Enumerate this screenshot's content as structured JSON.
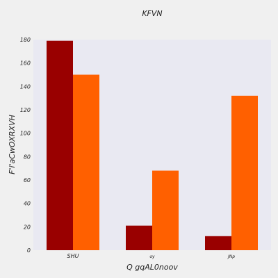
{
  "chart_data": {
    "type": "bar",
    "title": "KFVN",
    "xlabel": "Q  gqAL0noov",
    "ylabel": "F'i'aCwOXRXVH",
    "categories": [
      "SHU",
      "oy",
      "JNp"
    ],
    "series": [
      {
        "values": [
          179,
          21,
          12
        ],
        "color": "#990000"
      },
      {
        "values": [
          150,
          68,
          132
        ],
        "color": "#ff6000"
      }
    ],
    "ylim": [
      0,
      180
    ],
    "yticks": [
      0,
      20,
      40,
      60,
      80,
      100,
      120,
      140,
      160,
      180
    ],
    "grid": false,
    "plot_background": "#e9e9f2",
    "page_background": "#f0f0f0"
  }
}
